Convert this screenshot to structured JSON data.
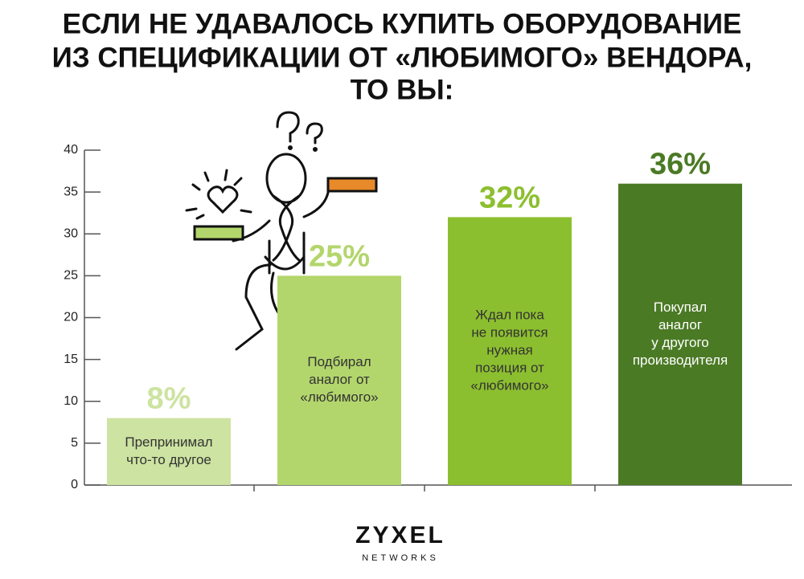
{
  "chart_data": {
    "type": "bar",
    "title": [
      "ЕСЛИ НЕ УДАВАЛОСЬ КУПИТЬ ОБОРУДОВАНИЕ",
      "ИЗ СПЕЦИФИКАЦИИ ОТ «ЛЮБИМОГО» ВЕНДОРА,",
      "ТО ВЫ:"
    ],
    "categories": [
      [
        "Препринимал",
        "что-то другое"
      ],
      [
        "Подбирал",
        "аналог от",
        "«любимого»"
      ],
      [
        "Ждал пока",
        "не появится",
        "нужная",
        "позиция от",
        "«любимого»"
      ],
      [
        "Покупал",
        "аналог",
        "у другого",
        "производителя"
      ]
    ],
    "values": [
      8,
      25,
      32,
      36
    ],
    "value_labels": [
      "8%",
      "25%",
      "32%",
      "36%"
    ],
    "colors": [
      "#cde3a1",
      "#b3d66c",
      "#8cbf2f",
      "#4b7a25"
    ],
    "label_colors": [
      "#333333",
      "#333333",
      "#333333",
      "#ffffff"
    ],
    "ylim": [
      0,
      40
    ],
    "yticks": [
      0,
      5,
      10,
      15,
      20,
      25,
      30,
      35,
      40
    ],
    "logo": {
      "name": "ZYXEL",
      "subtitle": "NETWORKS"
    }
  }
}
